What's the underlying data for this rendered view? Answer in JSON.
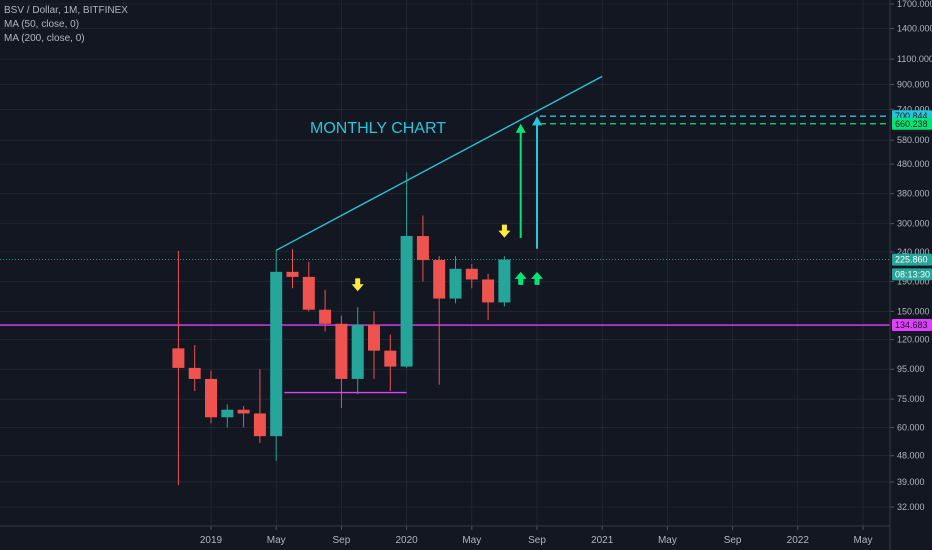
{
  "legend": {
    "symbol_line": "BSV / Dollar, 1M, BITFINEX",
    "ma50": "MA (50, close, 0)",
    "ma200": "MA (200, close, 0)"
  },
  "annotation": "MONTHLY CHART",
  "chart_data": {
    "type": "candlestick",
    "title": "BSV / Dollar, 1M, BITFINEX",
    "yscale": "log",
    "ylim": [
      29,
      1900
    ],
    "y_ticks": [
      "1700.000",
      "1400.000",
      "1100.000",
      "900.000",
      "740.000",
      "580.000",
      "480.000",
      "380.000",
      "300.000",
      "240.000",
      "190.000",
      "150.000",
      "120.000",
      "95.000",
      "75.000",
      "60.000",
      "48.000",
      "39.000",
      "32.000"
    ],
    "y_tick_values": [
      1700,
      1400,
      1100,
      900,
      740,
      580,
      480,
      380,
      300,
      240,
      190,
      150,
      120,
      95,
      75,
      60,
      48,
      39,
      32
    ],
    "x_ticks": [
      {
        "label": "2019",
        "month": 0
      },
      {
        "label": "May",
        "month": 4
      },
      {
        "label": "Sep",
        "month": 8
      },
      {
        "label": "2020",
        "month": 12
      },
      {
        "label": "May",
        "month": 16
      },
      {
        "label": "Sep",
        "month": 20
      },
      {
        "label": "2021",
        "month": 24
      },
      {
        "label": "May",
        "month": 28
      },
      {
        "label": "Sep",
        "month": 32
      },
      {
        "label": "2022",
        "month": 36
      },
      {
        "label": "May",
        "month": 40
      }
    ],
    "candles": [
      {
        "month": -2,
        "open": 112,
        "high": 242,
        "low": 38,
        "close": 96
      },
      {
        "month": -1,
        "open": 96,
        "high": 115,
        "low": 80,
        "close": 88
      },
      {
        "month": 0,
        "open": 88,
        "high": 94,
        "low": 62,
        "close": 65
      },
      {
        "month": 1,
        "open": 65,
        "high": 72,
        "low": 60,
        "close": 69
      },
      {
        "month": 2,
        "open": 69,
        "high": 71,
        "low": 60,
        "close": 67
      },
      {
        "month": 3,
        "open": 67,
        "high": 95,
        "low": 53,
        "close": 56
      },
      {
        "month": 4,
        "open": 56,
        "high": 243,
        "low": 46,
        "close": 205
      },
      {
        "month": 5,
        "open": 205,
        "high": 245,
        "low": 180,
        "close": 197
      },
      {
        "month": 6,
        "open": 197,
        "high": 222,
        "low": 150,
        "close": 152
      },
      {
        "month": 7,
        "open": 152,
        "high": 178,
        "low": 128,
        "close": 136
      },
      {
        "month": 8,
        "open": 136,
        "high": 145,
        "low": 70,
        "close": 88
      },
      {
        "month": 9,
        "open": 88,
        "high": 155,
        "low": 78,
        "close": 135
      },
      {
        "month": 10,
        "open": 135,
        "high": 150,
        "low": 88,
        "close": 110
      },
      {
        "month": 11,
        "open": 110,
        "high": 125,
        "low": 80,
        "close": 97
      },
      {
        "month": 12,
        "open": 97,
        "high": 450,
        "low": 96,
        "close": 272
      },
      {
        "month": 13,
        "open": 272,
        "high": 320,
        "low": 190,
        "close": 225
      },
      {
        "month": 14,
        "open": 225,
        "high": 232,
        "low": 84,
        "close": 166
      },
      {
        "month": 15,
        "open": 166,
        "high": 232,
        "low": 160,
        "close": 210
      },
      {
        "month": 16,
        "open": 210,
        "high": 218,
        "low": 180,
        "close": 193
      },
      {
        "month": 17,
        "open": 193,
        "high": 202,
        "low": 140,
        "close": 161
      },
      {
        "month": 18,
        "open": 161,
        "high": 232,
        "low": 156,
        "close": 226
      }
    ],
    "last_price_line": 225.86,
    "trendline": {
      "from_month": 4,
      "from_value": 243,
      "to_month": 24,
      "to_value": 960
    },
    "support_line": {
      "from_month": 4.5,
      "to_month": 12,
      "value": 79
    },
    "levels": [
      {
        "label": "700.844",
        "value": 700.844,
        "color": "#26c6da",
        "style": "dashed"
      },
      {
        "label": "660.238",
        "value": 660.238,
        "color": "#00e676",
        "style": "dashed"
      },
      {
        "label": "134.683",
        "value": 134.683,
        "color": "#e040fb",
        "style": "solid"
      }
    ],
    "price_tags": [
      {
        "label": "225.860",
        "value": 225.86,
        "color": "#26a69a"
      },
      {
        "label": "08:13:30",
        "value": 201,
        "color": "#26a69a"
      }
    ],
    "arrows": [
      {
        "kind": "down",
        "month": 9,
        "value": 180,
        "color": "#ffeb3b"
      },
      {
        "kind": "down",
        "month": 18,
        "value": 275,
        "color": "#ffeb3b"
      },
      {
        "kind": "up",
        "month": 19,
        "value": 205,
        "color": "#00e676"
      },
      {
        "kind": "up",
        "month": 20,
        "value": 205,
        "color": "#00e676"
      },
      {
        "kind": "long-up",
        "month": 19,
        "from_value": 268,
        "to_value": 660,
        "color": "#00e676"
      },
      {
        "kind": "long-up",
        "month": 20,
        "from_value": 246,
        "to_value": 700,
        "color": "#26c6da"
      }
    ],
    "colors": {
      "up": "#26a69a",
      "down": "#ef5350",
      "background": "#131722",
      "grid": "#2a2e39"
    }
  }
}
